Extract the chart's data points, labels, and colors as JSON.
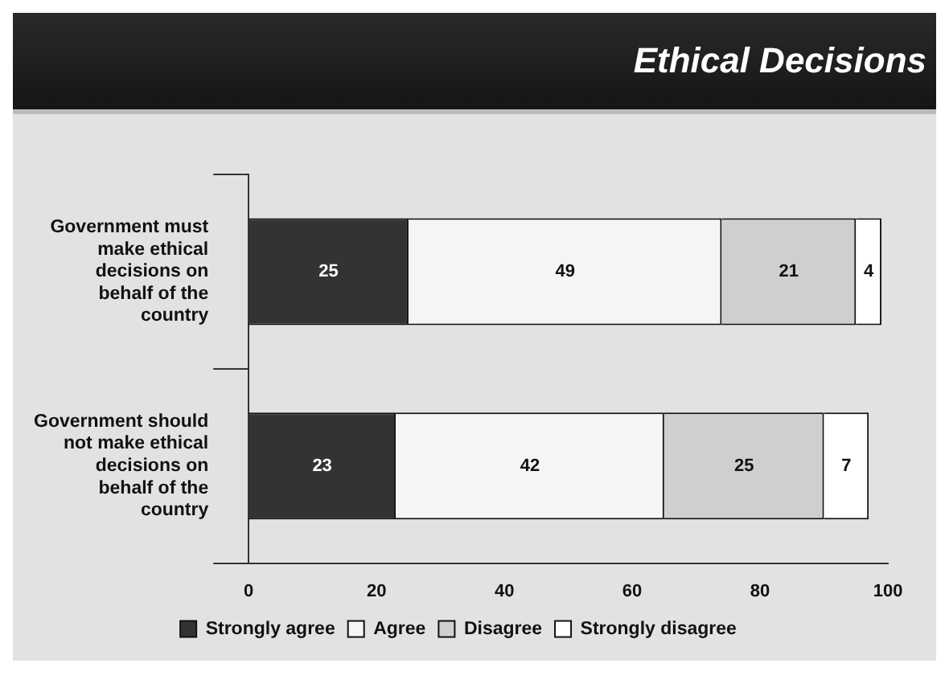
{
  "chart_data": {
    "type": "bar",
    "title": "Ethical Decisions",
    "orientation": "horizontal",
    "stacked": true,
    "categories": [
      "Government must make ethical decisions on behalf of the country",
      "Government should not make ethical decisions on behalf of the country"
    ],
    "series": [
      {
        "name": "Strongly agree",
        "color": "#333333",
        "values": [
          25,
          23
        ]
      },
      {
        "name": "Agree",
        "color": "#f5f5f5",
        "values": [
          49,
          42
        ]
      },
      {
        "name": "Disagree",
        "color": "#cfcfcf",
        "values": [
          21,
          25
        ]
      },
      {
        "name": "Strongly disagree",
        "color": "#ffffff",
        "values": [
          4,
          7
        ]
      }
    ],
    "xlim": [
      0,
      100
    ],
    "xticks": [
      0,
      20,
      40,
      60,
      80,
      100
    ],
    "grid": false,
    "legend": "bottom",
    "data_labels": true
  }
}
